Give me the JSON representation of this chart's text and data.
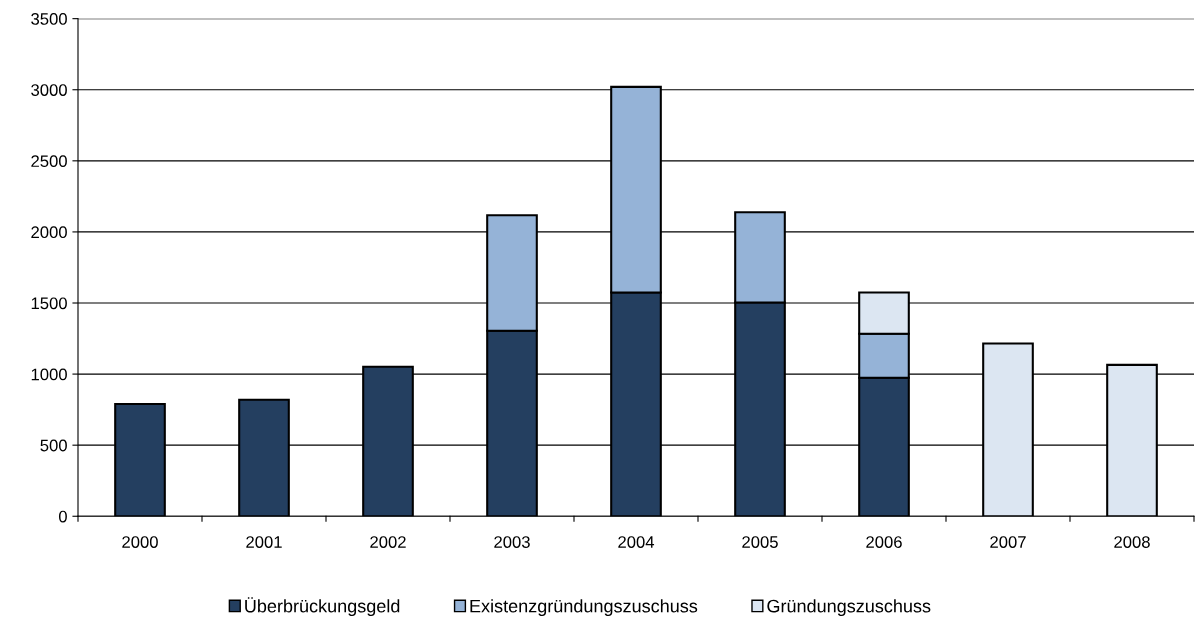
{
  "chart_data": {
    "type": "bar",
    "stacked": true,
    "categories": [
      "2000",
      "2001",
      "2002",
      "2003",
      "2004",
      "2005",
      "2006",
      "2007",
      "2008"
    ],
    "series": [
      {
        "name": "Überbrückungsgeld",
        "color": "#243f60",
        "values": [
          790,
          819,
          1052,
          1305,
          1574,
          1503,
          974,
          null,
          null
        ]
      },
      {
        "name": "Existenzgründungszuschuss",
        "color": "#95b3d7",
        "values": [
          null,
          null,
          null,
          812,
          1446,
          635,
          310,
          null,
          null
        ]
      },
      {
        "name": "Gründungszuschuss",
        "color": "#dce6f2",
        "values": [
          null,
          null,
          null,
          null,
          null,
          null,
          290,
          1215,
          1065
        ]
      }
    ],
    "ylim": [
      0,
      3500
    ],
    "yticks": [
      0,
      500,
      1000,
      1500,
      2000,
      2500,
      3000,
      3500
    ],
    "grid": "y",
    "legend": "bottom"
  }
}
